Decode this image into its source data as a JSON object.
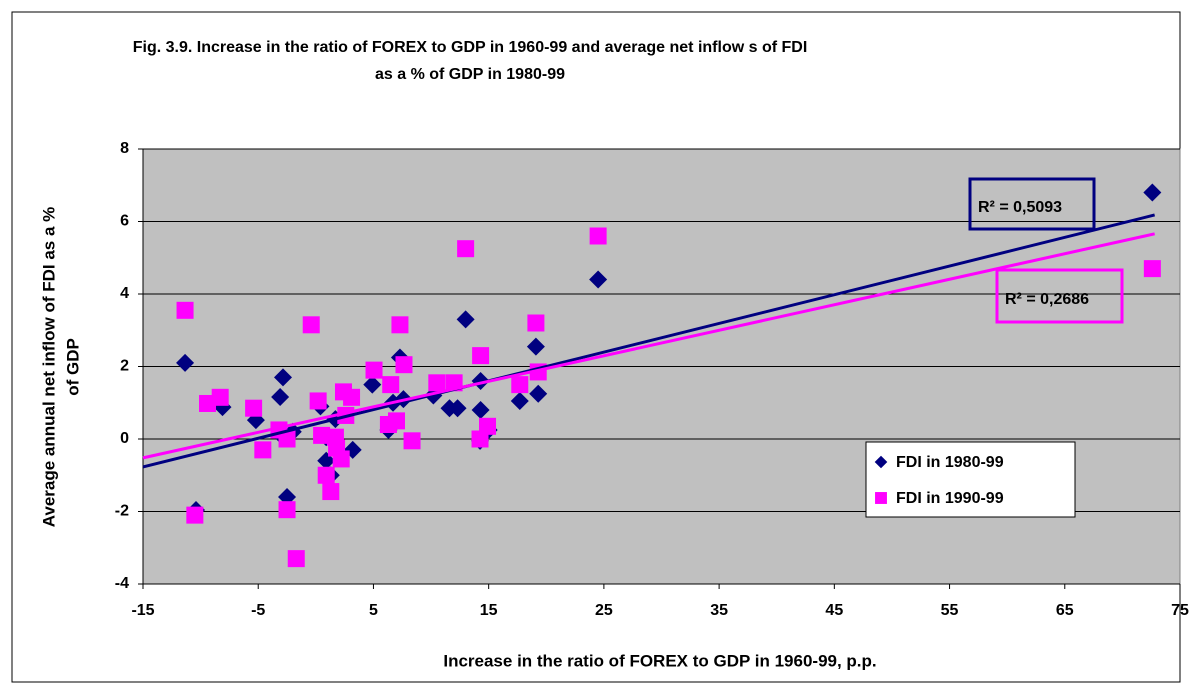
{
  "chart_data": {
    "type": "scatter",
    "title": [
      "Fig. 3.9. Increase in the ratio of FOREX to GDP in 1960-99 and average net inflow s of FDI",
      "as a % of GDP in 1980-99"
    ],
    "x_label": "Increase in the ratio of FOREX to GDP in 1960-99, p.p.",
    "y_label": [
      "Average annual net inflow of FDI as a %",
      "of GDP"
    ],
    "xlim": [
      -15,
      75
    ],
    "ylim": [
      -4,
      8
    ],
    "xticks": [
      -15,
      -5,
      5,
      15,
      25,
      35,
      45,
      55,
      65,
      75
    ],
    "yticks": [
      -4,
      -2,
      0,
      2,
      4,
      6,
      8
    ],
    "grid": true,
    "background": "#c0c0c0",
    "legend": "right",
    "series": [
      {
        "name": "FDI in 1980-99",
        "color": "#000080",
        "marker": "diamond",
        "x": [
          -11.35,
          -10.4,
          -8.1,
          -5.2,
          -3.1,
          -2.85,
          -3,
          -2.5,
          -2,
          0.4,
          0.9,
          0.9,
          1.3,
          1.7,
          3.2,
          4.9,
          6.3,
          6.7,
          7.3,
          7.6,
          10.2,
          11.6,
          12.3,
          13.0,
          14.25,
          14.3,
          14.3,
          15.0,
          17.7,
          19.1,
          19.3,
          24.5,
          72.6
        ],
        "values": [
          2.1,
          -1.96,
          0.88,
          0.52,
          1.16,
          1.7,
          0.1,
          -1.6,
          0.2,
          0.9,
          0.05,
          -0.6,
          -1.0,
          0.55,
          -0.3,
          1.5,
          0.25,
          1.0,
          2.25,
          1.1,
          1.2,
          0.85,
          0.85,
          3.3,
          -0.05,
          0.8,
          1.6,
          0.25,
          1.05,
          2.55,
          1.25,
          4.4,
          6.8
        ],
        "trend": {
          "x": [
            -15,
            72.8
          ],
          "values": [
            -0.77,
            6.18
          ],
          "label": "R² = 0,5093"
        }
      },
      {
        "name": "FDI in 1990-99",
        "color": "#ff00ff",
        "marker": "square",
        "x": [
          -11.35,
          -10.5,
          -9.4,
          -8.3,
          -5.4,
          -4.6,
          -3.2,
          -2.5,
          -2.5,
          -1.7,
          -0.4,
          0.2,
          0.5,
          0.9,
          1.3,
          1.7,
          1.8,
          2.2,
          2.4,
          2.6,
          3.1,
          5.05,
          6.3,
          6.5,
          7.0,
          7.3,
          7.65,
          8.35,
          10.5,
          12.0,
          13.0,
          14.25,
          14.3,
          14.9,
          17.7,
          19.1,
          19.3,
          24.5,
          72.6
        ],
        "values": [
          3.55,
          -2.1,
          0.98,
          1.15,
          0.85,
          -0.3,
          0.25,
          0.0,
          -1.95,
          -3.3,
          3.15,
          1.05,
          0.1,
          -1.0,
          -1.45,
          0.05,
          -0.25,
          -0.55,
          1.3,
          0.65,
          1.15,
          1.9,
          0.4,
          1.5,
          0.5,
          3.15,
          2.05,
          -0.05,
          1.55,
          1.55,
          5.25,
          0.0,
          2.3,
          0.35,
          1.5,
          3.2,
          1.85,
          5.6,
          4.7
        ],
        "trend": {
          "x": [
            -15,
            72.8
          ],
          "values": [
            -0.52,
            5.66
          ],
          "label": "R² = 0,2686"
        }
      }
    ]
  }
}
